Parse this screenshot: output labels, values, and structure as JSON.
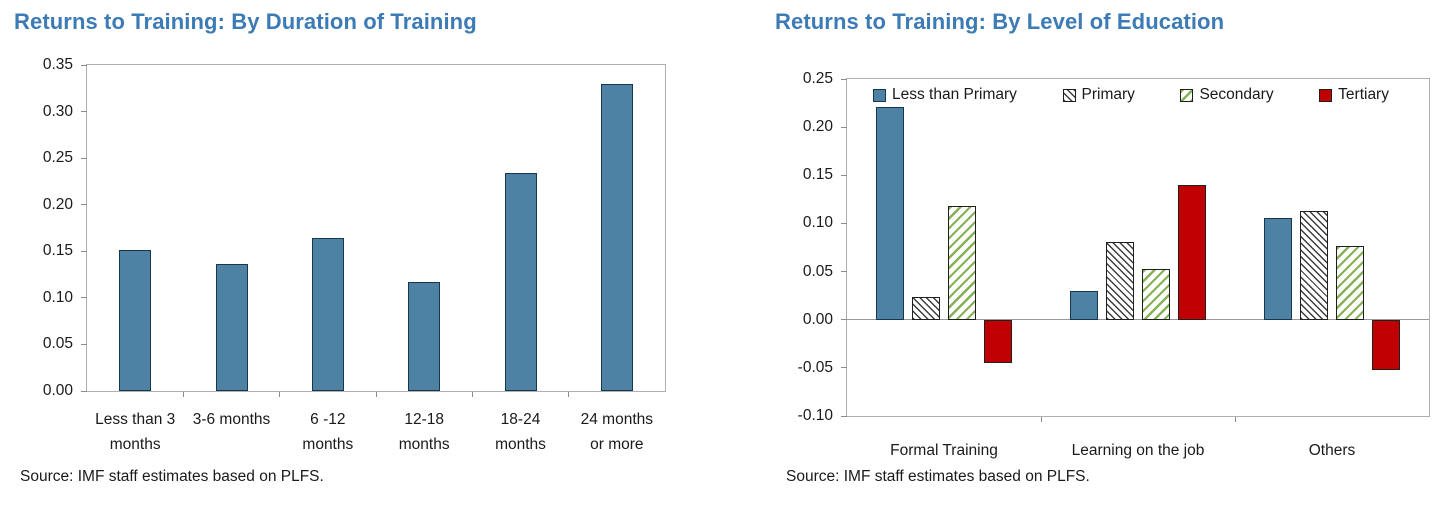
{
  "colors": {
    "title_blue": "#3d7bb6",
    "bar_blue": "#4e82a4",
    "bar_blue_border": "#17374e",
    "bar_red": "#c00000",
    "hatch_dark": "#3d3d3d",
    "hatch_green": "#84b254",
    "bar_border_dark": "#1f1f1f",
    "plot_border_gray": "#b0b0b0",
    "axis_tick_gray": "#8c8c8c",
    "text_color": "#1a1a1a"
  },
  "chart_data": [
    {
      "type": "bar",
      "title": "Returns to Training: By Duration of Training",
      "categories": [
        "Less than 3\nmonths",
        "3-6 months",
        "6 -12\nmonths",
        "12-18\nmonths",
        "18-24\nmonths",
        "24 months\nor more"
      ],
      "series": [
        {
          "name": "Returns to training",
          "style": "solid-blue",
          "values": [
            0.151,
            0.136,
            0.164,
            0.117,
            0.234,
            0.33
          ]
        }
      ],
      "ylim": [
        0,
        0.35
      ],
      "yticks": [
        0.35,
        0.3,
        0.25,
        0.2,
        0.15,
        0.1,
        0.05,
        0.0
      ],
      "grid": false,
      "legend": false,
      "legend_position": null,
      "source": "Source: IMF staff estimates based on PLFS."
    },
    {
      "type": "bar",
      "title": "Returns to Training: By Level of Education",
      "categories": [
        "Formal Training",
        "Learning on the job",
        "Others"
      ],
      "series": [
        {
          "name": "Less than Primary",
          "style": "solid-blue",
          "values": [
            0.221,
            0.03,
            0.106
          ]
        },
        {
          "name": "Primary",
          "style": "hatch-dark",
          "values": [
            0.024,
            0.081,
            0.113
          ]
        },
        {
          "name": "Secondary",
          "style": "hatch-green",
          "values": [
            0.118,
            0.053,
            0.077
          ]
        },
        {
          "name": "Tertiary",
          "style": "solid-red",
          "values": [
            -0.045,
            0.14,
            -0.052
          ]
        }
      ],
      "ylim": [
        -0.1,
        0.25
      ],
      "yticks": [
        0.25,
        0.2,
        0.15,
        0.1,
        0.05,
        0.0,
        -0.05,
        -0.1
      ],
      "grid": false,
      "legend": true,
      "legend_position": "top-inside",
      "source": "Source: IMF staff estimates based on PLFS."
    }
  ]
}
